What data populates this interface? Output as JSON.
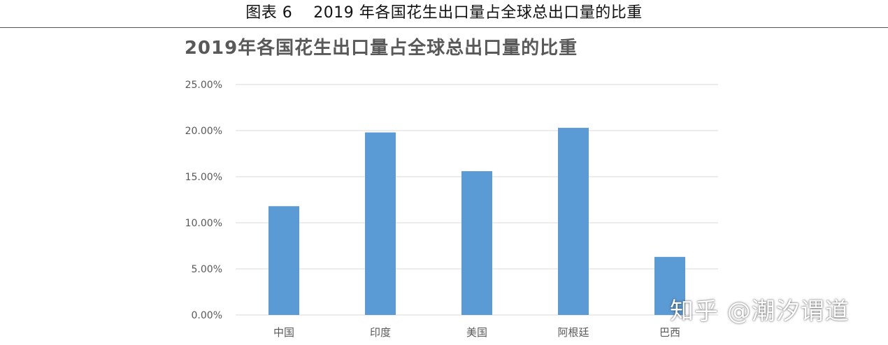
{
  "figure_caption": "图表 6    2019 年各国花生出口量占全球总出口量的比重",
  "watermark": "知乎 @潮汐谓道",
  "colors": {
    "bar": "#5b9bd5",
    "grid": "#d9d9d9",
    "text": "#595959"
  },
  "chart_data": {
    "type": "bar",
    "title": "2019年各国花生出口量占全球总出口量的比重",
    "xlabel": "",
    "ylabel": "",
    "categories": [
      "中国",
      "印度",
      "美国",
      "阿根廷",
      "巴西"
    ],
    "values": [
      11.8,
      19.8,
      15.6,
      20.3,
      6.3
    ],
    "ylim": [
      0,
      25
    ],
    "yticks": [
      0,
      5,
      10,
      15,
      20,
      25
    ],
    "ytick_labels": [
      "0.00%",
      "5.00%",
      "10.00%",
      "15.00%",
      "20.00%",
      "25.00%"
    ],
    "grid": true,
    "legend": "none"
  }
}
